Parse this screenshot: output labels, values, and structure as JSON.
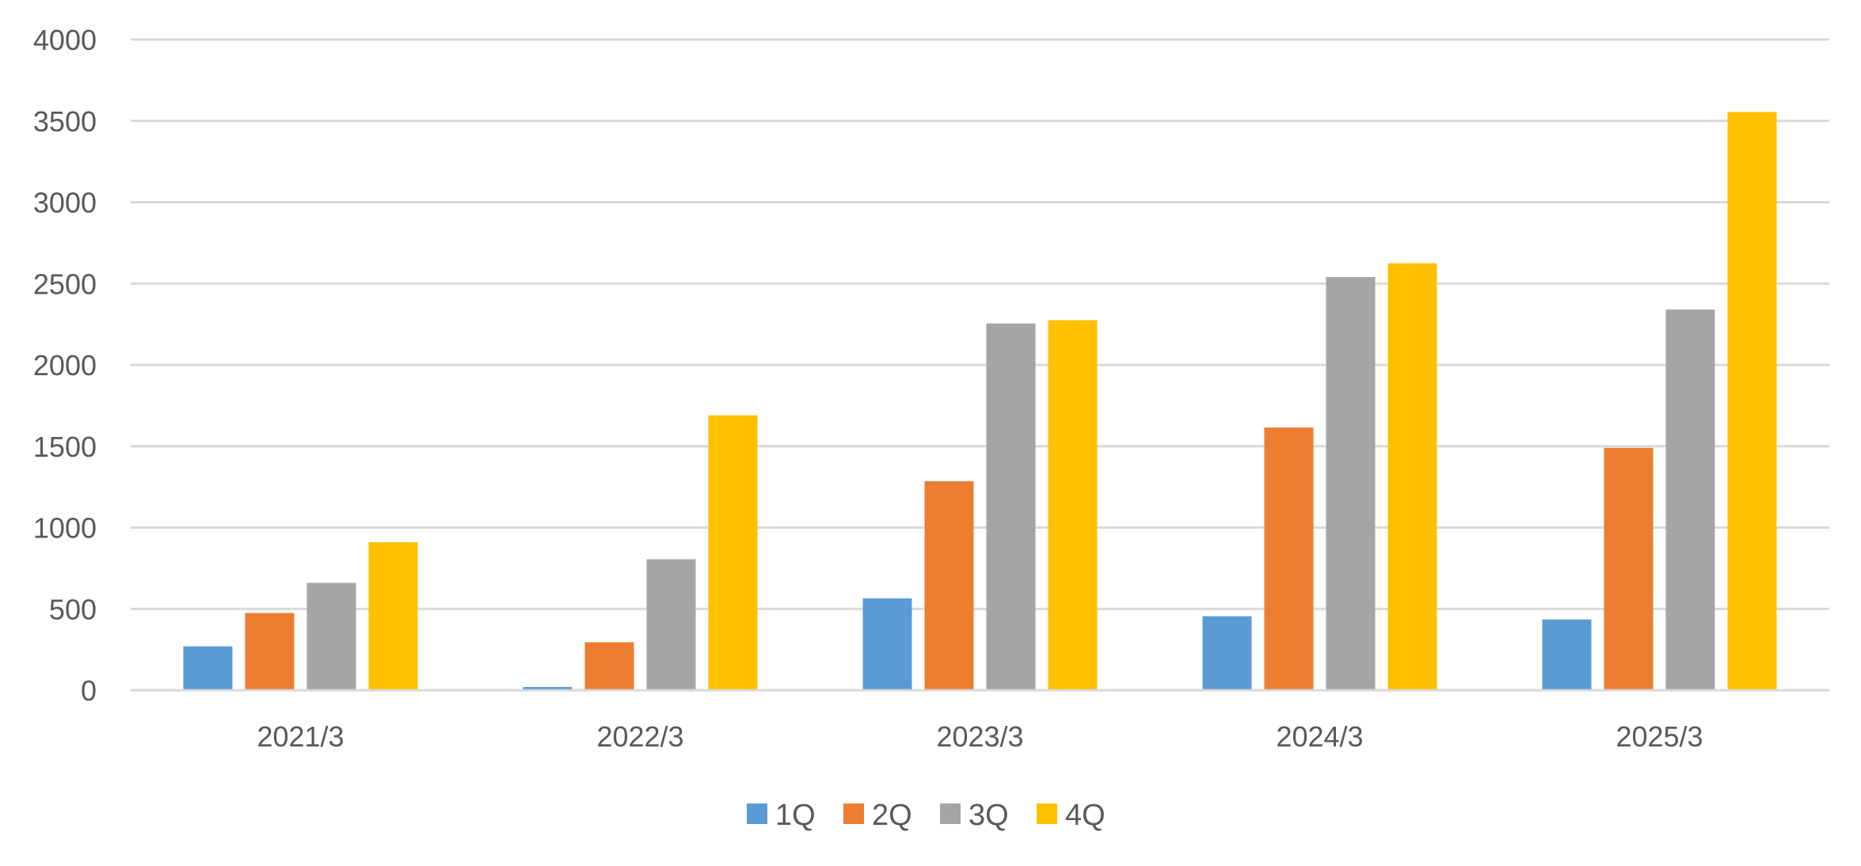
{
  "chart_data": {
    "type": "bar",
    "title": "",
    "xlabel": "",
    "ylabel": "",
    "categories": [
      "2021/3",
      "2022/3",
      "2023/3",
      "2024/3",
      "2025/3"
    ],
    "series": [
      {
        "name": "1Q",
        "color": "#5b9bd5",
        "values": [
          270,
          20,
          565,
          455,
          435
        ]
      },
      {
        "name": "2Q",
        "color": "#ed7d31",
        "values": [
          475,
          295,
          1285,
          1615,
          1490
        ]
      },
      {
        "name": "3Q",
        "color": "#a5a5a5",
        "values": [
          660,
          805,
          2255,
          2540,
          2340
        ]
      },
      {
        "name": "4Q",
        "color": "#ffc000",
        "values": [
          910,
          1690,
          2275,
          2625,
          3555
        ]
      }
    ],
    "ylim": [
      0,
      4000
    ],
    "yticks": [
      0,
      500,
      1000,
      1500,
      2000,
      2500,
      3000,
      3500,
      4000
    ],
    "grid": true,
    "legend_position": "bottom"
  }
}
